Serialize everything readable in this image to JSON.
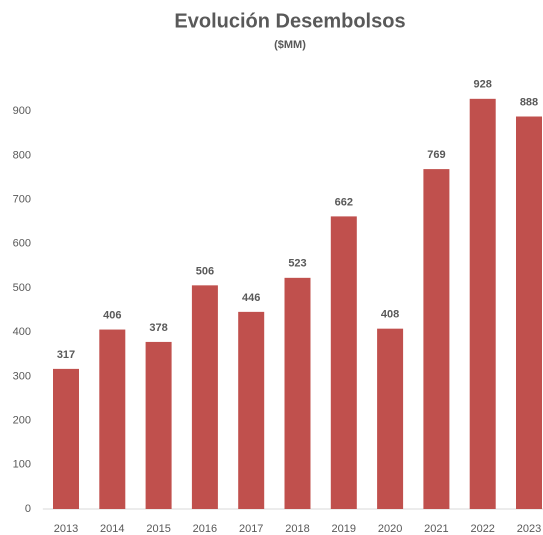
{
  "chart_data": {
    "type": "bar",
    "title": "Evolución Desembolsos",
    "subtitle": "($MM)",
    "categories": [
      "2013",
      "2014",
      "2015",
      "2016",
      "2017",
      "2018",
      "2019",
      "2020",
      "2021",
      "2022",
      "2023"
    ],
    "values": [
      317,
      406,
      378,
      506,
      446,
      523,
      662,
      408,
      769,
      928,
      888
    ],
    "color": "#c0504d",
    "ylim": [
      0,
      1000
    ],
    "yticks": [
      0,
      100,
      200,
      300,
      400,
      500,
      600,
      700,
      800,
      900
    ],
    "grid": false
  }
}
